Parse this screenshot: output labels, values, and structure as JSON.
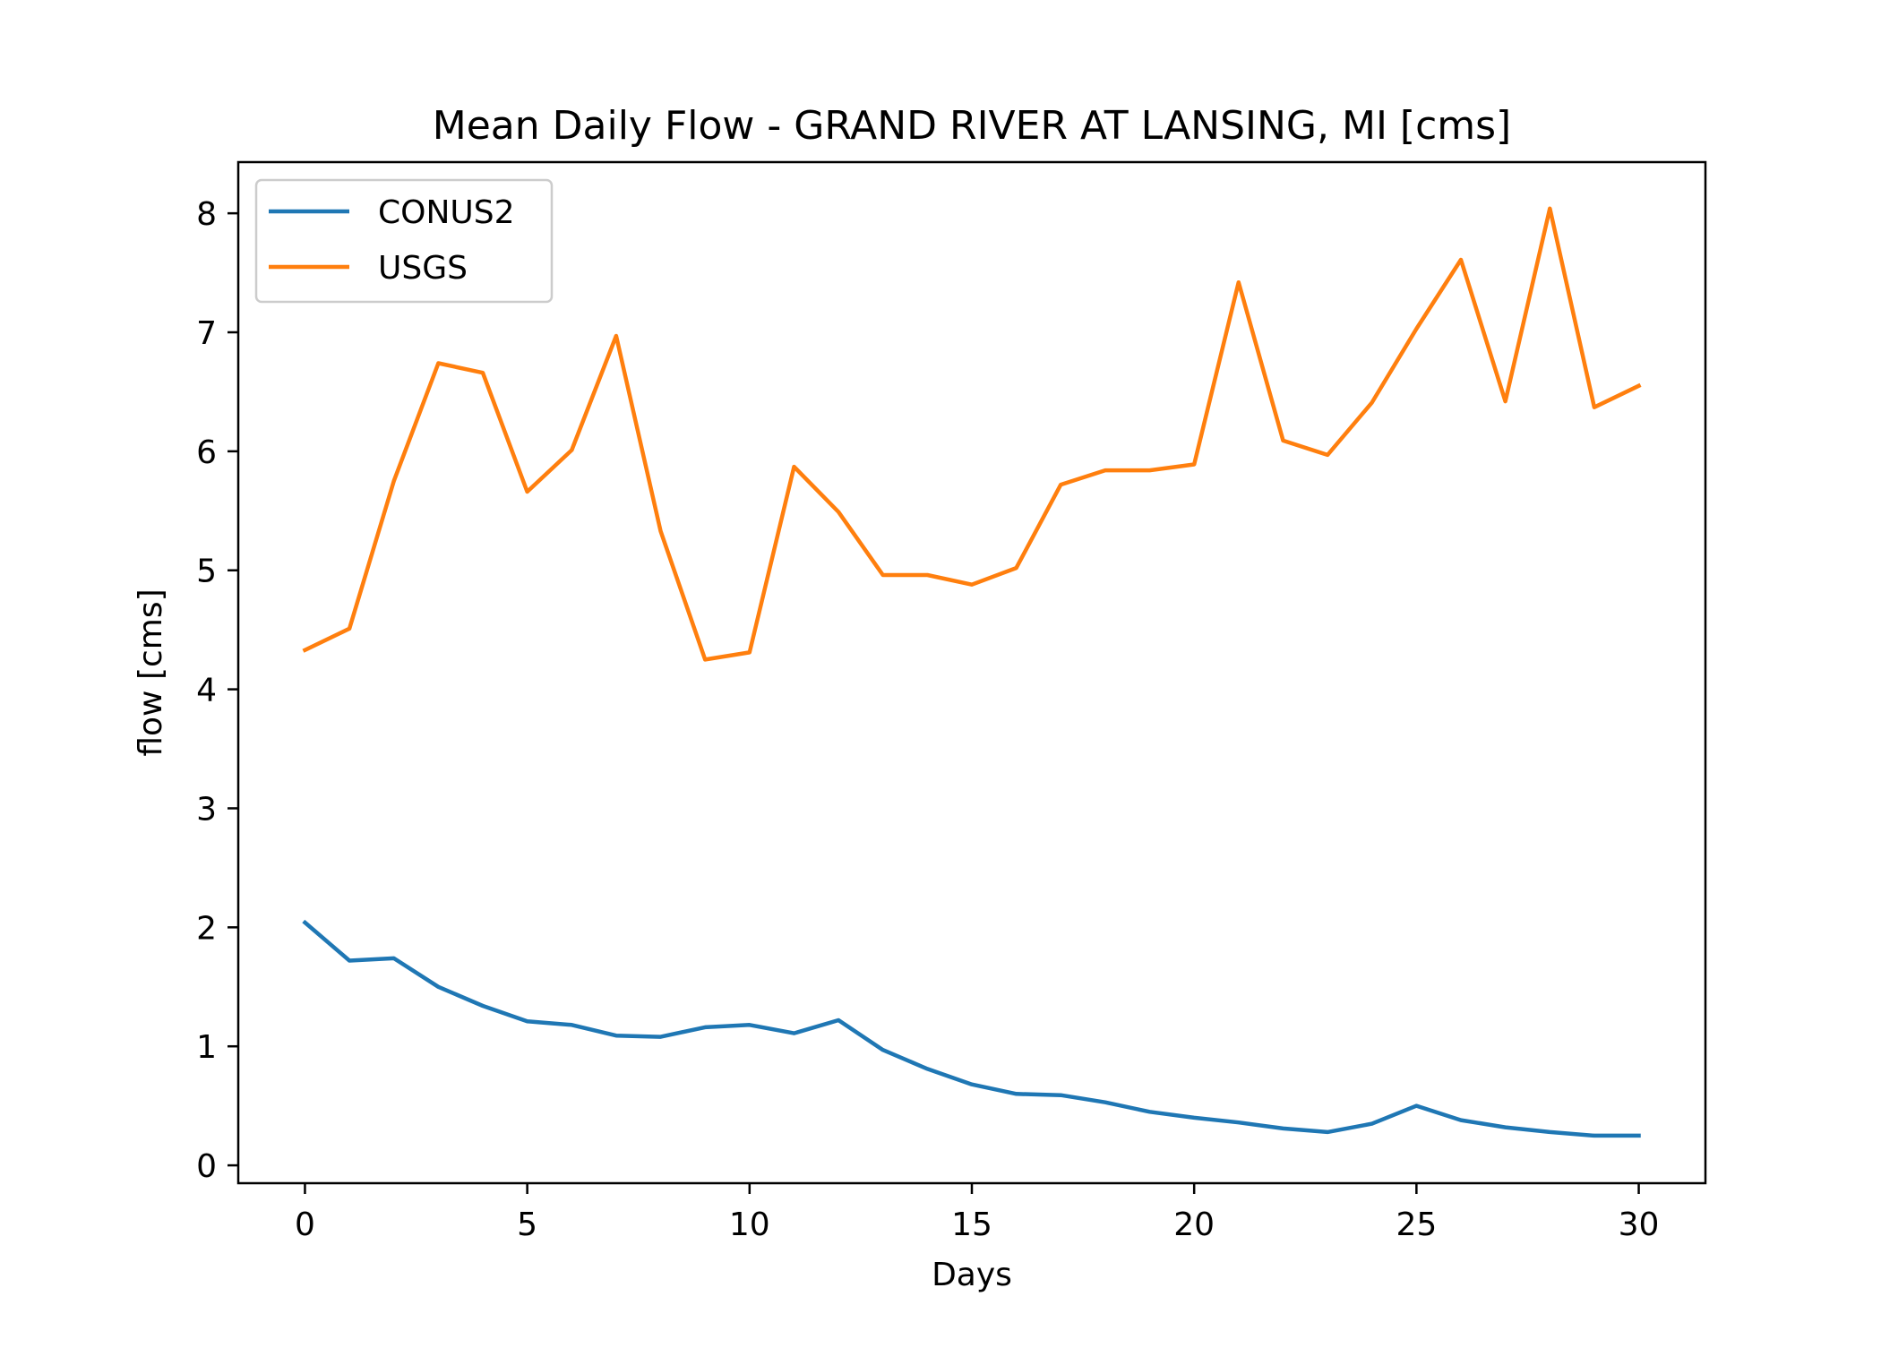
{
  "chart_data": {
    "type": "line",
    "title": "Mean Daily Flow - GRAND RIVER AT LANSING, MI [cms]",
    "xlabel": "Days",
    "ylabel": "flow [cms]",
    "xlim": [
      -1.5,
      31.5
    ],
    "ylim": [
      -0.15,
      8.43
    ],
    "x_ticks": [
      0,
      5,
      10,
      15,
      20,
      25,
      30
    ],
    "y_ticks": [
      0,
      1,
      2,
      3,
      4,
      5,
      6,
      7,
      8
    ],
    "grid": false,
    "legend_position": "upper-left",
    "x": [
      0,
      1,
      2,
      3,
      4,
      5,
      6,
      7,
      8,
      9,
      10,
      11,
      12,
      13,
      14,
      15,
      16,
      17,
      18,
      19,
      20,
      21,
      22,
      23,
      24,
      25,
      26,
      27,
      28,
      29,
      30
    ],
    "series": [
      {
        "name": "CONUS2",
        "color": "#1f77b4",
        "values": [
          2.04,
          1.72,
          1.74,
          1.5,
          1.34,
          1.21,
          1.18,
          1.09,
          1.08,
          1.16,
          1.18,
          1.11,
          1.22,
          0.97,
          0.81,
          0.68,
          0.6,
          0.59,
          0.53,
          0.45,
          0.4,
          0.36,
          0.31,
          0.28,
          0.35,
          0.5,
          0.38,
          0.32,
          0.28,
          0.25,
          0.25
        ]
      },
      {
        "name": "USGS",
        "color": "#ff7f0e",
        "values": [
          4.33,
          4.51,
          5.75,
          6.74,
          6.66,
          5.66,
          6.01,
          6.97,
          5.33,
          4.25,
          4.31,
          5.87,
          5.49,
          4.96,
          4.96,
          4.88,
          5.02,
          5.72,
          5.84,
          5.84,
          5.89,
          7.42,
          6.09,
          5.97,
          6.41,
          7.03,
          7.61,
          6.42,
          8.04,
          6.37,
          6.55
        ]
      }
    ]
  }
}
